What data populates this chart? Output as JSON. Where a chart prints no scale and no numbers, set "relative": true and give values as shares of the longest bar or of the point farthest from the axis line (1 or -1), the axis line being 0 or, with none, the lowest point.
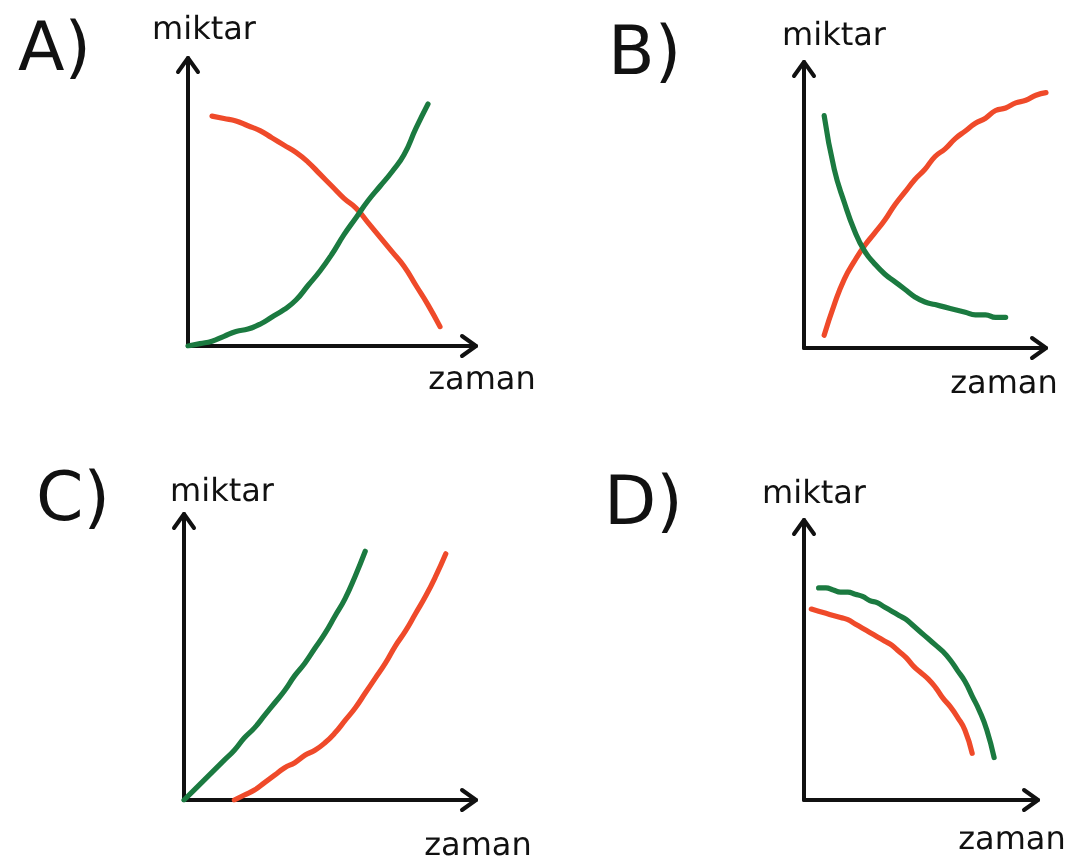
{
  "chart_data": [
    {
      "type": "line",
      "title": "A)",
      "xlabel": "zaman",
      "ylabel": "miktar",
      "relative": true,
      "tick_labels": false,
      "categories": [
        null,
        null,
        null,
        null,
        null,
        null,
        null,
        null,
        null,
        null,
        null,
        null,
        null,
        null,
        null,
        null,
        null,
        null,
        null,
        null,
        null,
        null,
        null,
        null,
        null
      ],
      "series": [
        {
          "color": "#ef4a2a",
          "values": [
            null,
            null,
            0.95,
            0.94,
            0.93,
            0.91,
            0.89,
            0.86,
            0.83,
            0.8,
            0.76,
            0.71,
            0.66,
            0.61,
            0.57,
            0.51,
            0.45,
            0.39,
            0.33,
            0.25,
            0.17,
            0.08,
            null,
            null,
            null
          ]
        },
        {
          "color": "#1b7a40",
          "values": [
            0,
            0.01,
            0.02,
            0.04,
            0.06,
            0.07,
            0.09,
            0.12,
            0.15,
            0.19,
            0.25,
            0.31,
            0.38,
            0.46,
            0.53,
            0.6,
            0.66,
            0.72,
            0.79,
            0.9,
            1,
            null,
            null,
            null,
            null
          ]
        }
      ]
    },
    {
      "type": "line",
      "title": "B)",
      "xlabel": "zaman",
      "ylabel": "miktar",
      "relative": true,
      "tick_labels": false,
      "categories": [
        null,
        null,
        null,
        null,
        null,
        null,
        null,
        null,
        null,
        null,
        null,
        null,
        null,
        null,
        null,
        null,
        null,
        null,
        null,
        null,
        null,
        null,
        null,
        null,
        null
      ],
      "series": [
        {
          "color": "#ef4a2a",
          "values": [
            null,
            null,
            0.05,
            0.17,
            0.27,
            0.34,
            0.4,
            0.45,
            0.5,
            0.56,
            0.61,
            0.66,
            0.7,
            0.75,
            0.78,
            0.82,
            0.85,
            0.88,
            0.9,
            0.93,
            0.94,
            0.96,
            0.97,
            0.99,
            1
          ]
        },
        {
          "color": "#1b7a40",
          "values": [
            null,
            null,
            0.91,
            0.7,
            0.57,
            0.46,
            0.38,
            0.33,
            0.29,
            0.26,
            0.23,
            0.2,
            0.18,
            0.17,
            0.16,
            0.15,
            0.14,
            0.13,
            0.13,
            0.12,
            0.12,
            null,
            null,
            null,
            null
          ]
        }
      ]
    },
    {
      "type": "line",
      "title": "C)",
      "xlabel": "zaman",
      "ylabel": "miktar",
      "relative": true,
      "tick_labels": false,
      "categories": [
        null,
        null,
        null,
        null,
        null,
        null,
        null,
        null,
        null,
        null,
        null,
        null,
        null,
        null,
        null,
        null,
        null,
        null,
        null,
        null,
        null,
        null,
        null,
        null,
        null,
        null,
        null,
        null,
        null,
        null
      ],
      "series": [
        {
          "color": "#1b7a40",
          "values": [
            0,
            0.04,
            0.08,
            0.12,
            0.16,
            0.2,
            0.25,
            0.29,
            0.34,
            0.39,
            0.44,
            0.5,
            0.55,
            0.61,
            0.67,
            0.74,
            0.81,
            0.9,
            1,
            null,
            null,
            null,
            null,
            null,
            null,
            null,
            null,
            null,
            null,
            null
          ]
        },
        {
          "color": "#ef4a2a",
          "values": [
            null,
            null,
            null,
            null,
            null,
            0,
            0.02,
            0.04,
            0.07,
            0.1,
            0.13,
            0.15,
            0.18,
            0.2,
            0.23,
            0.27,
            0.32,
            0.37,
            0.43,
            0.49,
            0.55,
            0.62,
            0.68,
            0.75,
            0.82,
            0.9,
            0.99,
            null,
            null,
            null
          ]
        }
      ]
    },
    {
      "type": "line",
      "title": "D)",
      "xlabel": "zaman",
      "ylabel": "miktar",
      "relative": true,
      "tick_labels": false,
      "categories": [
        null,
        null,
        null,
        null,
        null,
        null,
        null,
        null,
        null,
        null,
        null,
        null,
        null,
        null,
        null,
        null,
        null,
        null,
        null,
        null,
        null,
        null,
        null,
        null,
        null,
        null,
        null,
        null,
        null,
        null,
        null,
        null,
        null
      ],
      "series": [
        {
          "color": "#ef4a2a",
          "values": [
            null,
            0.9,
            0.89,
            0.88,
            0.87,
            0.86,
            0.85,
            0.83,
            0.81,
            0.79,
            0.77,
            0.75,
            0.73,
            0.7,
            0.67,
            0.63,
            0.6,
            0.57,
            0.53,
            0.48,
            0.44,
            0.39,
            0.33,
            0.22,
            null,
            null,
            null,
            null,
            null,
            null,
            null,
            null,
            null
          ]
        },
        {
          "color": "#1b7a40",
          "values": [
            null,
            null,
            1,
            1,
            0.99,
            0.98,
            0.98,
            0.97,
            0.96,
            0.94,
            0.93,
            0.91,
            0.89,
            0.87,
            0.85,
            0.82,
            0.79,
            0.76,
            0.73,
            0.7,
            0.66,
            0.61,
            0.56,
            0.49,
            0.42,
            0.33,
            0.2,
            null,
            null,
            null,
            null,
            null,
            null
          ]
        }
      ]
    }
  ]
}
